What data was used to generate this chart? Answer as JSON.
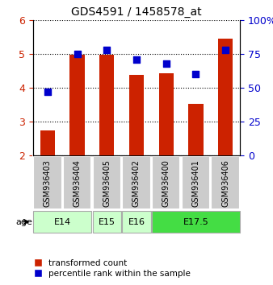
{
  "title": "GDS4591 / 1458578_at",
  "samples": [
    "GSM936403",
    "GSM936404",
    "GSM936405",
    "GSM936402",
    "GSM936400",
    "GSM936401",
    "GSM936406"
  ],
  "transformed_count": [
    2.75,
    4.97,
    4.97,
    4.37,
    4.42,
    3.52,
    5.45
  ],
  "percentile_rank": [
    47,
    75,
    78,
    71,
    68,
    60,
    78
  ],
  "ylim_left": [
    2,
    6
  ],
  "ylim_right": [
    0,
    100
  ],
  "bar_color": "#cc2200",
  "dot_color": "#0000cc",
  "age_groups": [
    {
      "label": "E14",
      "start": 0,
      "end": 2,
      "color": "#ccffcc",
      "edge_color": "#aaaaaa"
    },
    {
      "label": "E15",
      "start": 2,
      "end": 3,
      "color": "#ccffcc",
      "edge_color": "#aaaaaa"
    },
    {
      "label": "E16",
      "start": 3,
      "end": 4,
      "color": "#ccffcc",
      "edge_color": "#aaaaaa"
    },
    {
      "label": "E17.5",
      "start": 4,
      "end": 7,
      "color": "#44dd44",
      "edge_color": "#aaaaaa"
    }
  ],
  "sample_box_color": "#cccccc",
  "ylabel_left": "",
  "ylabel_right": "",
  "yticks_left": [
    2,
    3,
    4,
    5,
    6
  ],
  "yticks_right": [
    0,
    25,
    50,
    75,
    100
  ],
  "ytick_labels_right": [
    "0",
    "25",
    "50",
    "75",
    "100%"
  ],
  "left_tick_color": "#cc2200",
  "right_tick_color": "#0000cc",
  "age_label": "age",
  "legend_items": [
    {
      "label": "transformed count",
      "color": "#cc2200",
      "marker": "s"
    },
    {
      "label": "percentile rank within the sample",
      "color": "#0000cc",
      "marker": "s"
    }
  ]
}
